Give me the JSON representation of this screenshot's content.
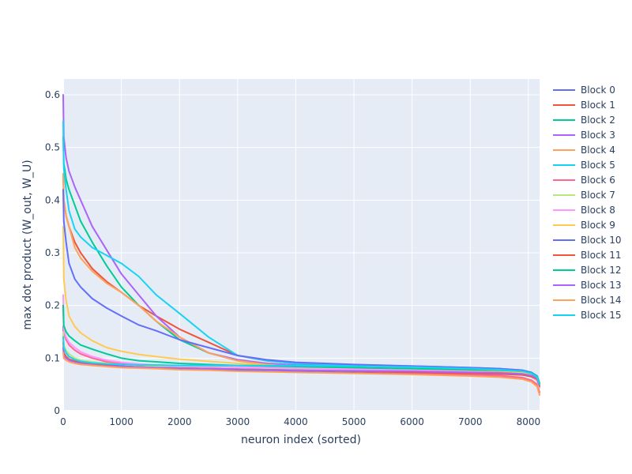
{
  "chart_data": {
    "type": "line",
    "title": "",
    "xlabel": "neuron index (sorted)",
    "ylabel": "max dot product (W_out, W_U)",
    "xlim": [
      0,
      8192
    ],
    "ylim": [
      0,
      0.63
    ],
    "xticks": [
      0,
      1000,
      2000,
      3000,
      4000,
      5000,
      6000,
      7000,
      8000
    ],
    "yticks": [
      0,
      0.1,
      0.2,
      0.3,
      0.4,
      0.5,
      0.6
    ],
    "xtick_labels": [
      "0",
      "1000",
      "2000",
      "3000",
      "4000",
      "5000",
      "6000",
      "7000",
      "8000"
    ],
    "ytick_labels": [
      "0",
      "0.1",
      "0.2",
      "0.3",
      "0.4",
      "0.5",
      "0.6"
    ],
    "grid": true,
    "legend_position": "right",
    "plot_background": "#e5ecf6",
    "x": [
      0,
      10,
      50,
      100,
      200,
      300,
      500,
      750,
      1000,
      1300,
      1600,
      2000,
      2500,
      3000,
      3500,
      4000,
      5000,
      6000,
      7000,
      7500,
      7900,
      8050,
      8150,
      8192
    ],
    "series": [
      {
        "name": "Block 0",
        "color": "#636efa",
        "values": [
          0.16,
          0.122,
          0.11,
          0.103,
          0.097,
          0.093,
          0.09,
          0.087,
          0.085,
          0.083,
          0.082,
          0.08,
          0.078,
          0.077,
          0.075,
          0.074,
          0.072,
          0.07,
          0.067,
          0.065,
          0.062,
          0.058,
          0.05,
          0.035
        ]
      },
      {
        "name": "Block 1",
        "color": "#ef553b",
        "values": [
          0.45,
          0.4,
          0.37,
          0.35,
          0.32,
          0.3,
          0.27,
          0.245,
          0.225,
          0.2,
          0.18,
          0.155,
          0.13,
          0.105,
          0.095,
          0.09,
          0.085,
          0.082,
          0.078,
          0.076,
          0.072,
          0.068,
          0.06,
          0.045
        ]
      },
      {
        "name": "Block 2",
        "color": "#00cc96",
        "values": [
          0.52,
          0.47,
          0.44,
          0.42,
          0.39,
          0.36,
          0.32,
          0.275,
          0.235,
          0.2,
          0.17,
          0.135,
          0.11,
          0.095,
          0.088,
          0.085,
          0.082,
          0.08,
          0.077,
          0.075,
          0.072,
          0.068,
          0.062,
          0.05
        ]
      },
      {
        "name": "Block 3",
        "color": "#ab63fa",
        "values": [
          0.6,
          0.52,
          0.48,
          0.455,
          0.425,
          0.4,
          0.35,
          0.305,
          0.26,
          0.22,
          0.18,
          0.14,
          0.11,
          0.097,
          0.09,
          0.087,
          0.084,
          0.082,
          0.079,
          0.077,
          0.074,
          0.07,
          0.064,
          0.05
        ]
      },
      {
        "name": "Block 4",
        "color": "#ffa15a",
        "values": [
          0.45,
          0.4,
          0.37,
          0.35,
          0.31,
          0.29,
          0.265,
          0.242,
          0.225,
          0.2,
          0.17,
          0.14,
          0.11,
          0.095,
          0.088,
          0.084,
          0.081,
          0.078,
          0.075,
          0.073,
          0.07,
          0.066,
          0.058,
          0.045
        ]
      },
      {
        "name": "Block 5",
        "color": "#19d3f3",
        "values": [
          0.55,
          0.46,
          0.42,
          0.38,
          0.345,
          0.33,
          0.31,
          0.295,
          0.28,
          0.255,
          0.22,
          0.185,
          0.14,
          0.105,
          0.095,
          0.09,
          0.087,
          0.085,
          0.082,
          0.08,
          0.077,
          0.073,
          0.066,
          0.052
        ]
      },
      {
        "name": "Block 6",
        "color": "#ff6692",
        "values": [
          0.2,
          0.15,
          0.135,
          0.125,
          0.115,
          0.108,
          0.1,
          0.093,
          0.09,
          0.087,
          0.085,
          0.083,
          0.081,
          0.08,
          0.078,
          0.077,
          0.075,
          0.072,
          0.069,
          0.067,
          0.063,
          0.058,
          0.05,
          0.035
        ]
      },
      {
        "name": "Block 7",
        "color": "#b6e880",
        "values": [
          0.15,
          0.125,
          0.115,
          0.108,
          0.1,
          0.096,
          0.093,
          0.09,
          0.088,
          0.086,
          0.085,
          0.084,
          0.083,
          0.082,
          0.081,
          0.08,
          0.078,
          0.076,
          0.073,
          0.071,
          0.068,
          0.064,
          0.057,
          0.043
        ]
      },
      {
        "name": "Block 8",
        "color": "#ff97ff",
        "values": [
          0.22,
          0.155,
          0.14,
          0.13,
          0.12,
          0.112,
          0.103,
          0.096,
          0.092,
          0.089,
          0.087,
          0.085,
          0.084,
          0.083,
          0.082,
          0.081,
          0.079,
          0.077,
          0.074,
          0.072,
          0.069,
          0.065,
          0.058,
          0.044
        ]
      },
      {
        "name": "Block 9",
        "color": "#fecb52",
        "values": [
          0.35,
          0.25,
          0.21,
          0.18,
          0.16,
          0.148,
          0.133,
          0.12,
          0.113,
          0.107,
          0.103,
          0.098,
          0.094,
          0.09,
          0.087,
          0.085,
          0.083,
          0.081,
          0.078,
          0.076,
          0.073,
          0.069,
          0.062,
          0.048
        ]
      },
      {
        "name": "Block 10",
        "color": "#636efa",
        "values": [
          0.42,
          0.36,
          0.32,
          0.28,
          0.25,
          0.235,
          0.213,
          0.195,
          0.18,
          0.163,
          0.152,
          0.135,
          0.12,
          0.105,
          0.097,
          0.092,
          0.088,
          0.085,
          0.082,
          0.08,
          0.077,
          0.073,
          0.066,
          0.052
        ]
      },
      {
        "name": "Block 11",
        "color": "#ef553b",
        "values": [
          0.13,
          0.11,
          0.103,
          0.098,
          0.094,
          0.091,
          0.088,
          0.086,
          0.084,
          0.083,
          0.082,
          0.081,
          0.08,
          0.079,
          0.078,
          0.077,
          0.075,
          0.073,
          0.071,
          0.07,
          0.068,
          0.065,
          0.06,
          0.047
        ]
      },
      {
        "name": "Block 12",
        "color": "#00cc96",
        "values": [
          0.2,
          0.162,
          0.15,
          0.142,
          0.133,
          0.125,
          0.117,
          0.108,
          0.1,
          0.095,
          0.093,
          0.09,
          0.088,
          0.086,
          0.085,
          0.084,
          0.082,
          0.08,
          0.078,
          0.077,
          0.075,
          0.072,
          0.066,
          0.052
        ]
      },
      {
        "name": "Block 13",
        "color": "#ab63fa",
        "values": [
          0.12,
          0.105,
          0.1,
          0.096,
          0.092,
          0.09,
          0.087,
          0.085,
          0.084,
          0.083,
          0.082,
          0.081,
          0.08,
          0.079,
          0.078,
          0.077,
          0.076,
          0.075,
          0.073,
          0.072,
          0.07,
          0.067,
          0.062,
          0.05
        ]
      },
      {
        "name": "Block 14",
        "color": "#ffa15a",
        "values": [
          0.11,
          0.1,
          0.096,
          0.093,
          0.09,
          0.088,
          0.086,
          0.084,
          0.082,
          0.081,
          0.08,
          0.078,
          0.077,
          0.075,
          0.074,
          0.073,
          0.071,
          0.069,
          0.066,
          0.064,
          0.06,
          0.055,
          0.046,
          0.03
        ]
      },
      {
        "name": "Block 15",
        "color": "#19d3f3",
        "values": [
          0.14,
          0.12,
          0.11,
          0.103,
          0.097,
          0.094,
          0.091,
          0.089,
          0.088,
          0.087,
          0.087,
          0.086,
          0.086,
          0.086,
          0.086,
          0.086,
          0.085,
          0.083,
          0.08,
          0.078,
          0.075,
          0.071,
          0.064,
          0.05
        ]
      }
    ]
  }
}
